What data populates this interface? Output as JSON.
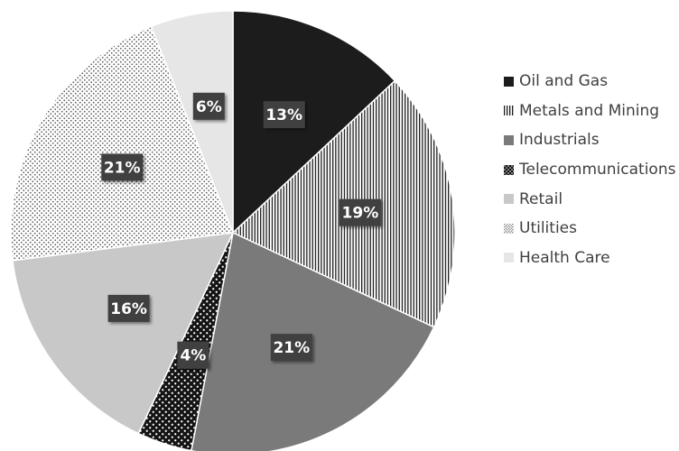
{
  "chart_data": {
    "type": "pie",
    "categories": [
      "Oil and Gas",
      "Metals and Mining",
      "Industrials",
      "Telecommunications",
      "Retail",
      "Utilities",
      "Health Care"
    ],
    "values": [
      13,
      19,
      21,
      4,
      16,
      21,
      6
    ],
    "data_labels": [
      "13%",
      "19%",
      "21%",
      "4%",
      "16%",
      "21%",
      "6%"
    ],
    "start": "12 o'clock",
    "direction": "clockwise",
    "legend_position": "right",
    "fills": [
      {
        "type": "solid",
        "color": "#1c1c1c"
      },
      {
        "type": "vertical-stripes",
        "color": "#1e1e1e",
        "background": "#ffffff"
      },
      {
        "type": "solid",
        "color": "#7a7a7a"
      },
      {
        "type": "dots",
        "color": "#ffffff",
        "background": "#141414"
      },
      {
        "type": "solid",
        "color": "#c8c8c8"
      },
      {
        "type": "dots",
        "color": "#555555",
        "background": "#ffffff"
      },
      {
        "type": "solid",
        "color": "#e6e6e6"
      }
    ]
  }
}
